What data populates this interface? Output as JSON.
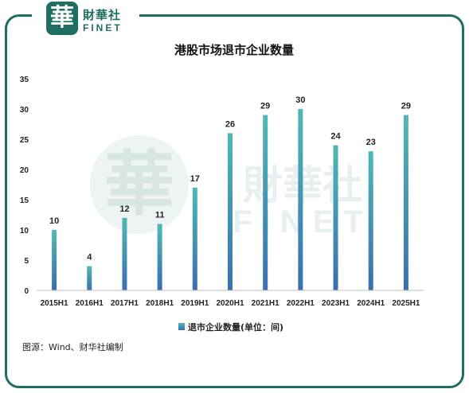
{
  "logo": {
    "badge_char": "華",
    "name_cn": "財華社",
    "name_en": "FINET"
  },
  "watermark": {
    "badge_char": "華",
    "name_cn": "財華社",
    "name_en": "FINET"
  },
  "chart_data": {
    "type": "bar",
    "title": "港股市场退市企业数量",
    "categories": [
      "2015H1",
      "2016H1",
      "2017H1",
      "2018H1",
      "2019H1",
      "2020H1",
      "2021H1",
      "2022H1",
      "2023H1",
      "2024H1",
      "2025H1"
    ],
    "series": [
      {
        "name": "退市企业数量(单位：间)",
        "values": [
          10,
          4,
          12,
          11,
          17,
          26,
          29,
          30,
          24,
          23,
          29
        ]
      }
    ],
    "ylim": [
      0,
      35
    ],
    "yticks": [
      0,
      5,
      10,
      15,
      20,
      25,
      30,
      35
    ],
    "grid": false,
    "legend": "bottom",
    "data_labels": true,
    "colors": {
      "bar_top": "#4fb9b4",
      "bar_bottom": "#3a6fb0"
    }
  },
  "source": "图源：Wind、财华社编制"
}
